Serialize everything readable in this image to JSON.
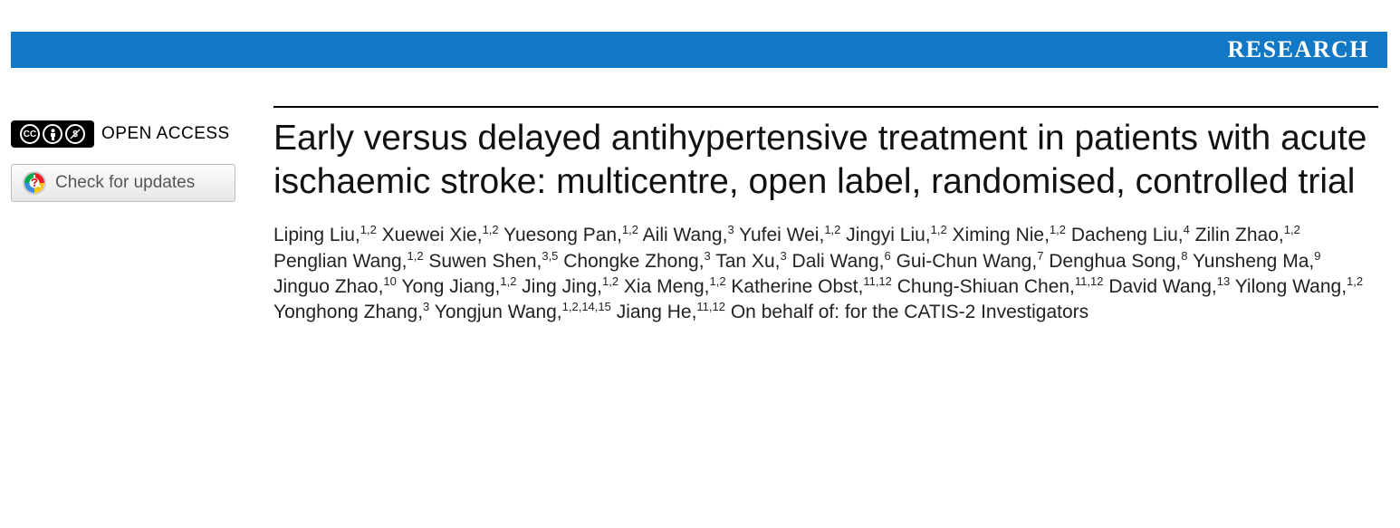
{
  "banner": {
    "label": "RESEARCH",
    "background_color": "#1277c5",
    "text_color": "#ffffff"
  },
  "sidebar": {
    "open_access_label": "OPEN ACCESS",
    "cc_badge": {
      "parts": [
        "CC",
        "BY",
        "NC"
      ]
    },
    "updates_button_label": "Check for updates"
  },
  "article": {
    "title": "Early versus delayed antihypertensive treatment in patients with acute ischaemic stroke: multicentre, open label, randomised, controlled trial",
    "authors": [
      {
        "name": "Liping Liu",
        "affil": "1,2"
      },
      {
        "name": "Xuewei Xie",
        "affil": "1,2"
      },
      {
        "name": "Yuesong Pan",
        "affil": "1,2"
      },
      {
        "name": "Aili Wang",
        "affil": "3"
      },
      {
        "name": "Yufei Wei",
        "affil": "1,2"
      },
      {
        "name": "Jingyi Liu",
        "affil": "1,2"
      },
      {
        "name": "Ximing Nie",
        "affil": "1,2"
      },
      {
        "name": "Dacheng Liu",
        "affil": "4"
      },
      {
        "name": "Zilin Zhao",
        "affil": "1,2"
      },
      {
        "name": "Penglian Wang",
        "affil": "1,2"
      },
      {
        "name": "Suwen Shen",
        "affil": "3,5"
      },
      {
        "name": "Chongke Zhong",
        "affil": "3"
      },
      {
        "name": "Tan Xu",
        "affil": "3"
      },
      {
        "name": "Dali Wang",
        "affil": "6"
      },
      {
        "name": "Gui-Chun Wang",
        "affil": "7"
      },
      {
        "name": "Denghua Song",
        "affil": "8"
      },
      {
        "name": "Yunsheng Ma",
        "affil": "9"
      },
      {
        "name": "Jinguo Zhao",
        "affil": "10"
      },
      {
        "name": "Yong Jiang",
        "affil": "1,2"
      },
      {
        "name": "Jing Jing",
        "affil": "1,2"
      },
      {
        "name": "Xia Meng",
        "affil": "1,2"
      },
      {
        "name": "Katherine Obst",
        "affil": "11,12"
      },
      {
        "name": "Chung-Shiuan Chen",
        "affil": "11,12"
      },
      {
        "name": "David Wang",
        "affil": "13"
      },
      {
        "name": "Yilong Wang",
        "affil": "1,2"
      },
      {
        "name": "Yonghong Zhang",
        "affil": "3"
      },
      {
        "name": "Yongjun Wang",
        "affil": "1,2,14,15"
      },
      {
        "name": "Jiang He",
        "affil": "11,12"
      }
    ],
    "author_suffix": "On behalf of: for the CATIS-2 Investigators"
  },
  "style": {
    "title_fontsize": 39,
    "title_color": "#111111",
    "author_fontsize": 21,
    "author_color": "#222222",
    "rule_color": "#000000"
  }
}
